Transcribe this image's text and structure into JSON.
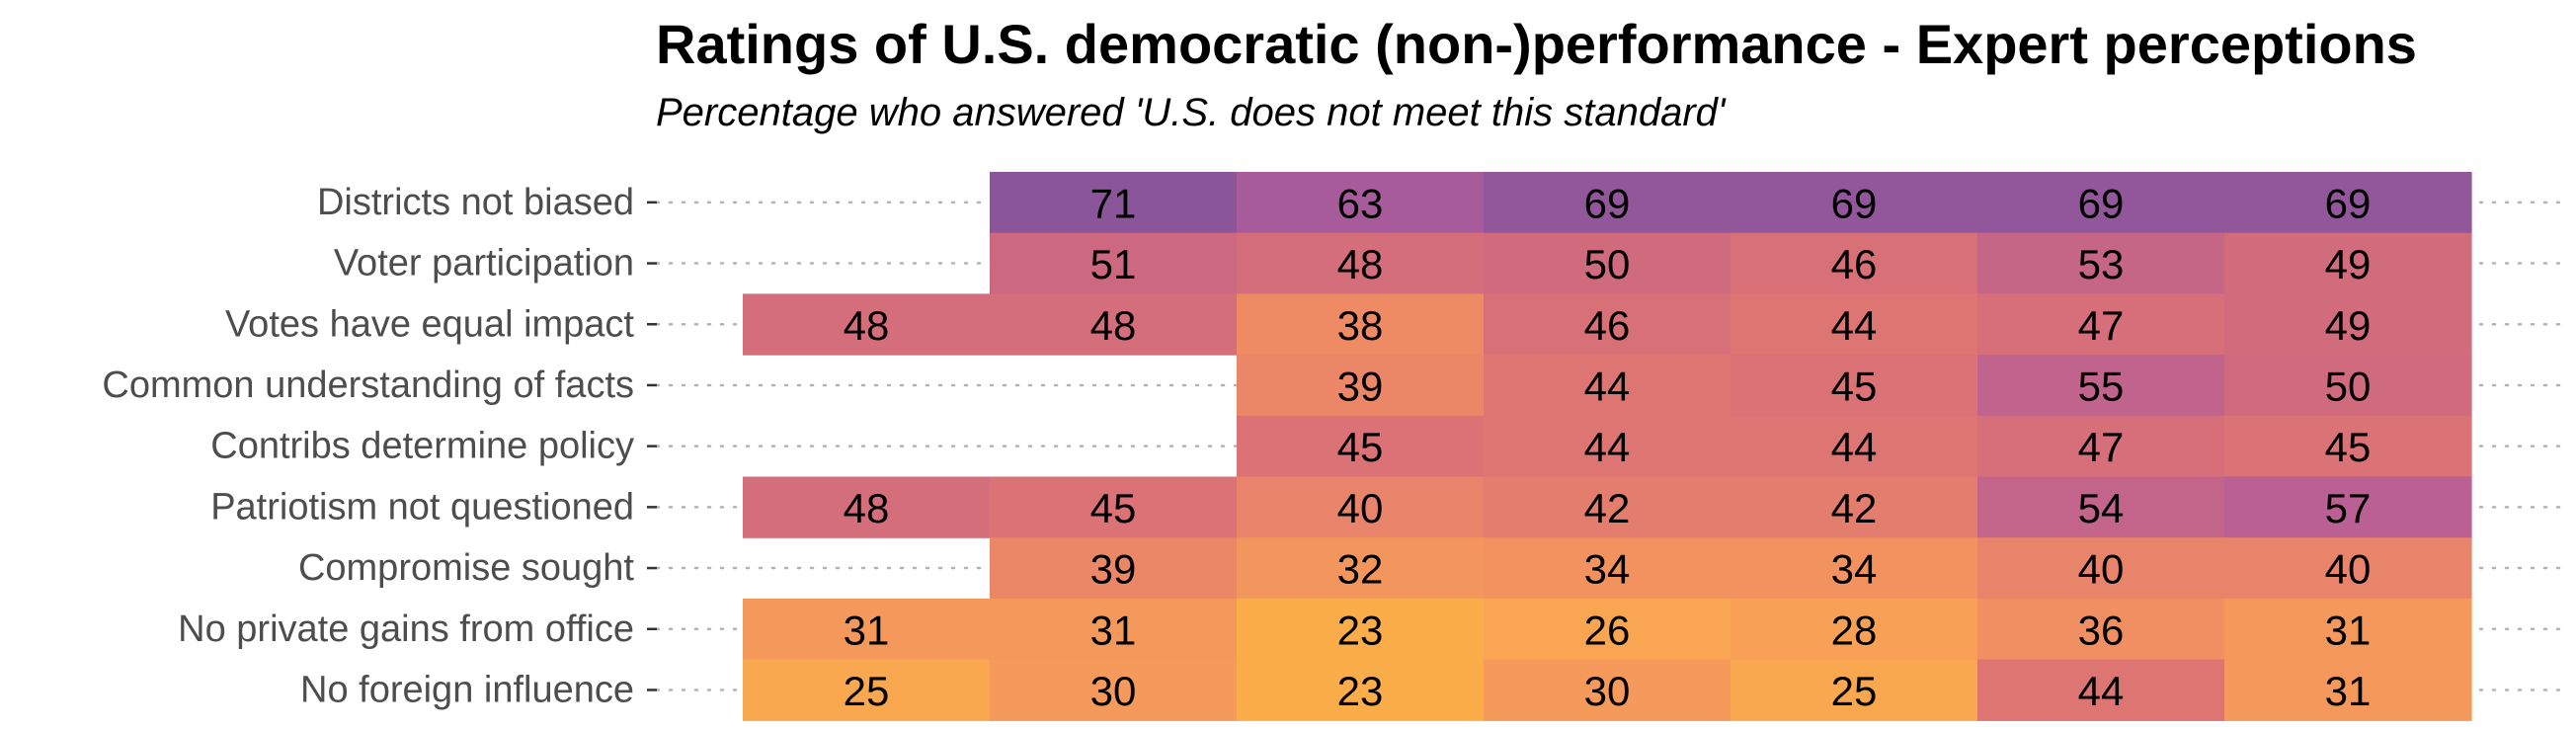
{
  "chart_data": {
    "type": "heatmap",
    "title": "Ratings of U.S. democratic (non-)performance - Expert perceptions",
    "subtitle": "Percentage who answered 'U.S. does not meet this standard'",
    "column_count": 7,
    "rows": [
      {
        "label": "Districts not biased",
        "values": [
          null,
          71,
          63,
          69,
          69,
          69,
          69
        ]
      },
      {
        "label": "Voter participation",
        "values": [
          null,
          51,
          48,
          50,
          46,
          53,
          49
        ]
      },
      {
        "label": "Votes have equal impact",
        "values": [
          48,
          48,
          38,
          46,
          44,
          47,
          49
        ]
      },
      {
        "label": "Common understanding of facts",
        "values": [
          null,
          null,
          39,
          44,
          45,
          55,
          50
        ]
      },
      {
        "label": "Contribs determine policy",
        "values": [
          null,
          null,
          45,
          44,
          44,
          47,
          45
        ]
      },
      {
        "label": "Patriotism not questioned",
        "values": [
          48,
          45,
          40,
          42,
          42,
          54,
          57
        ]
      },
      {
        "label": "Compromise sought",
        "values": [
          null,
          39,
          32,
          34,
          34,
          40,
          40
        ]
      },
      {
        "label": "No private gains from office",
        "values": [
          31,
          31,
          23,
          26,
          28,
          36,
          31
        ]
      },
      {
        "label": "No foreign influence",
        "values": [
          25,
          30,
          23,
          30,
          25,
          44,
          31
        ]
      }
    ],
    "color_scale": {
      "palette": "plasma-like (low = orange/yellow, high = purple)",
      "stops": [
        {
          "value": 22,
          "color": "#FCB048"
        },
        {
          "value": 30,
          "color": "#F59A5A"
        },
        {
          "value": 38,
          "color": "#EE8B64"
        },
        {
          "value": 45,
          "color": "#DA7276"
        },
        {
          "value": 50,
          "color": "#CF6B7D"
        },
        {
          "value": 57,
          "color": "#BA6093"
        },
        {
          "value": 64,
          "color": "#A45A9C"
        },
        {
          "value": 72,
          "color": "#875498"
        }
      ]
    },
    "grid": "dotted row guides"
  }
}
